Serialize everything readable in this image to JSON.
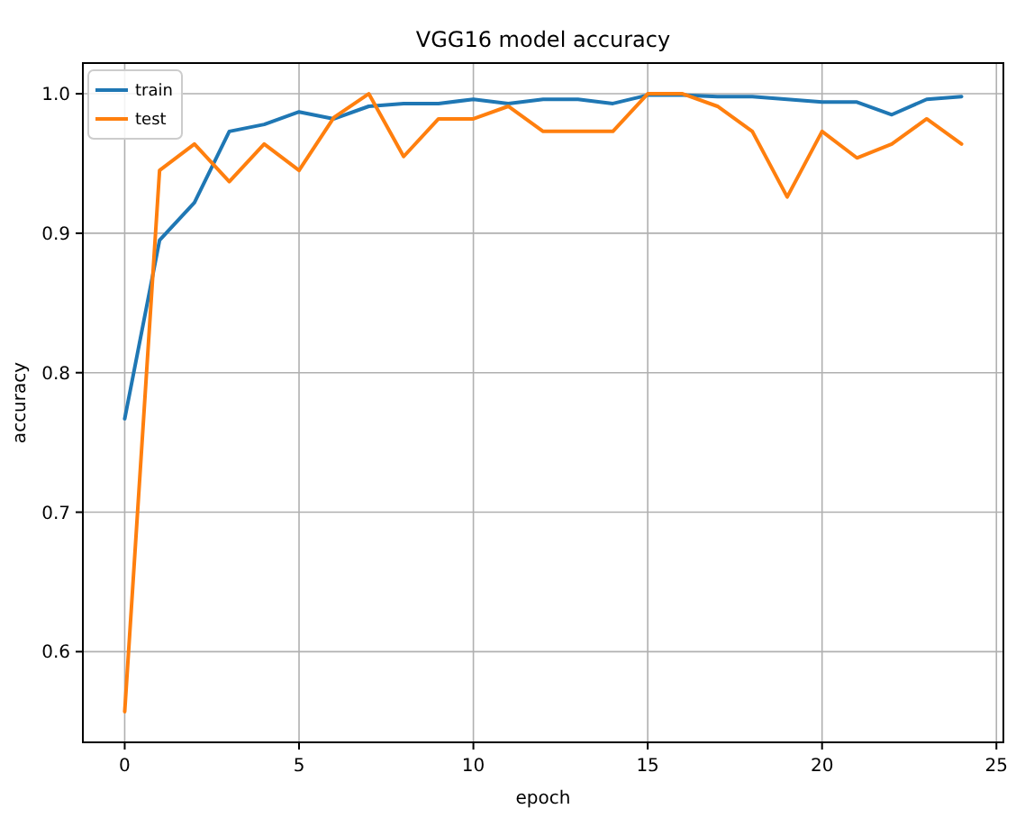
{
  "chart_data": {
    "type": "line",
    "title": "VGG16 model accuracy",
    "xlabel": "epoch",
    "ylabel": "accuracy",
    "x": [
      0,
      1,
      2,
      3,
      4,
      5,
      6,
      7,
      8,
      9,
      10,
      11,
      12,
      13,
      14,
      15,
      16,
      17,
      18,
      19,
      20,
      21,
      22,
      23,
      24
    ],
    "series": [
      {
        "name": "train",
        "color": "#1f77b4",
        "values": [
          0.767,
          0.895,
          0.922,
          0.973,
          0.978,
          0.987,
          0.982,
          0.991,
          0.993,
          0.993,
          0.996,
          0.993,
          0.996,
          0.996,
          0.993,
          0.999,
          0.999,
          0.998,
          0.998,
          0.996,
          0.994,
          0.994,
          0.985,
          0.996,
          0.998
        ]
      },
      {
        "name": "test",
        "color": "#ff7f0e",
        "values": [
          0.557,
          0.945,
          0.964,
          0.937,
          0.964,
          0.945,
          0.983,
          1.0,
          0.955,
          0.982,
          0.982,
          0.991,
          0.973,
          0.973,
          0.973,
          1.0,
          1.0,
          0.991,
          0.973,
          0.926,
          0.973,
          0.954,
          0.964,
          0.982,
          0.964
        ]
      }
    ],
    "xlim": [
      -1.2,
      25.2
    ],
    "xticks": [
      0,
      5,
      10,
      15,
      20,
      25
    ],
    "ylim": [
      0.535,
      1.022
    ],
    "yticks": [
      0.6,
      0.7,
      0.8,
      0.9,
      {
        "value": 1,
        "label": "1.0"
      }
    ],
    "grid": true,
    "legend": "top left",
    "line_style": "solid",
    "marker": "none"
  }
}
